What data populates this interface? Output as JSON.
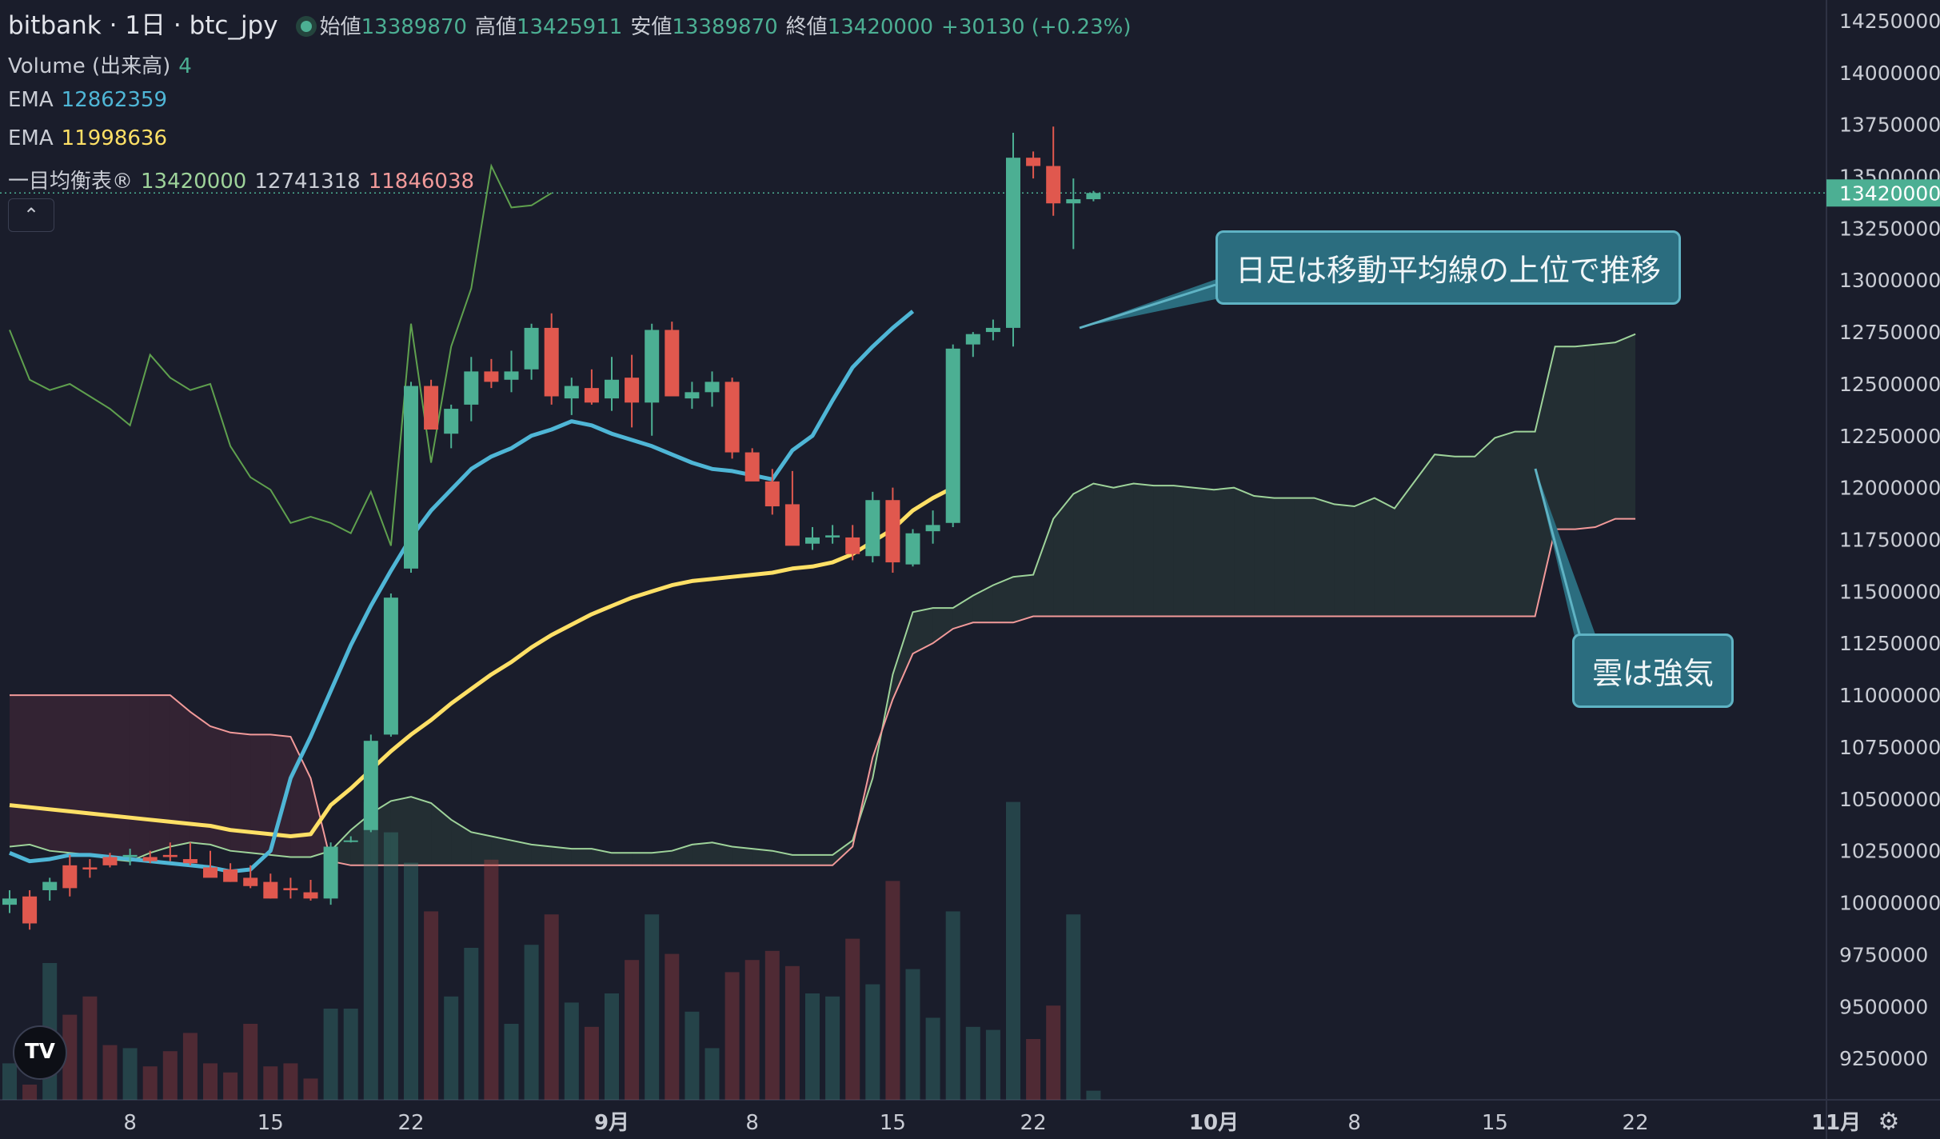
{
  "header": {
    "symbol_title": "bitbank · 1日 · btc_jpy",
    "open_label": "始値",
    "open_value": "13389870",
    "high_label": "高値",
    "high_value": "13425911",
    "low_label": "安値",
    "low_value": "13389870",
    "close_label": "終値",
    "close_value": "13420000",
    "change": "+30130 (+0.23%)"
  },
  "indicators": {
    "volume_label": "Volume (出来高)",
    "volume_value": "4",
    "ema1_label": "EMA",
    "ema1_value": "12862359",
    "ema2_label": "EMA",
    "ema2_value": "11998636",
    "ichimoku_label": "一目均衡表®",
    "ichimoku_v1": "13420000",
    "ichimoku_v2": "12741318",
    "ichimoku_v3": "11846038"
  },
  "annotations": {
    "callout_1": "日足は移動平均線の上位で推移",
    "callout_2": "雲は強気"
  },
  "ui": {
    "collapse_icon": "chevron-up-icon",
    "logo_text": "TV"
  },
  "colors": {
    "background": "#1a1d2b",
    "up": "#4caf93",
    "down": "#e0584e",
    "ema_fast": "#4fb6d6",
    "ema_slow": "#ffe066",
    "span_a": "#9ed39a",
    "span_b": "#f29a9a",
    "lagging": "#5fa04e"
  },
  "chart_data": {
    "type": "candlestick",
    "y_axis_ticks": [
      9250000,
      9500000,
      9750000,
      10000000,
      10250000,
      10500000,
      10750000,
      11000000,
      11250000,
      11500000,
      11750000,
      12000000,
      12250000,
      12500000,
      12750000,
      13000000,
      13250000,
      13500000,
      13750000,
      14000000,
      14250000
    ],
    "ylim": [
      9050000,
      14350000
    ],
    "last_price": 13420000,
    "x_axis_labels": [
      {
        "label": "",
        "slot": 0
      },
      {
        "label": "8",
        "slot": 6
      },
      {
        "label": "15",
        "slot": 13
      },
      {
        "label": "22",
        "slot": 20
      },
      {
        "label": "9月",
        "slot": 30
      },
      {
        "label": "8",
        "slot": 37
      },
      {
        "label": "15",
        "slot": 44
      },
      {
        "label": "22",
        "slot": 51
      },
      {
        "label": "10月",
        "slot": 60
      },
      {
        "label": "8",
        "slot": 67
      },
      {
        "label": "15",
        "slot": 74
      },
      {
        "label": "22",
        "slot": 81
      },
      {
        "label": "11月",
        "slot": 91
      }
    ],
    "candles": [
      [
        9990000,
        10060000,
        9950000,
        10020000
      ],
      [
        10030000,
        10060000,
        9870000,
        9900000
      ],
      [
        10060000,
        10120000,
        10010000,
        10100000
      ],
      [
        10180000,
        10230000,
        10030000,
        10070000
      ],
      [
        10170000,
        10210000,
        10120000,
        10160000
      ],
      [
        10220000,
        10240000,
        10170000,
        10180000
      ],
      [
        10220000,
        10260000,
        10180000,
        10230000
      ],
      [
        10220000,
        10250000,
        10190000,
        10200000
      ],
      [
        10230000,
        10290000,
        10200000,
        10220000
      ],
      [
        10210000,
        10290000,
        10180000,
        10190000
      ],
      [
        10170000,
        10250000,
        10130000,
        10120000
      ],
      [
        10160000,
        10190000,
        10100000,
        10100000
      ],
      [
        10120000,
        10180000,
        10070000,
        10080000
      ],
      [
        10100000,
        10140000,
        10020000,
        10020000
      ],
      [
        10070000,
        10120000,
        10020000,
        10060000
      ],
      [
        10050000,
        10110000,
        10010000,
        10020000
      ],
      [
        10020000,
        10290000,
        9990000,
        10270000
      ],
      [
        10300000,
        10320000,
        10290000,
        10300000
      ],
      [
        10350000,
        10810000,
        10340000,
        10780000
      ],
      [
        10810000,
        11490000,
        10800000,
        11470000
      ],
      [
        11610000,
        12510000,
        11590000,
        12490000
      ],
      [
        12490000,
        12520000,
        12280000,
        12280000
      ],
      [
        12260000,
        12400000,
        12190000,
        12380000
      ],
      [
        12400000,
        12630000,
        12320000,
        12560000
      ],
      [
        12560000,
        12620000,
        12480000,
        12510000
      ],
      [
        12520000,
        12660000,
        12460000,
        12560000
      ],
      [
        12570000,
        12790000,
        12520000,
        12770000
      ],
      [
        12770000,
        12840000,
        12400000,
        12440000
      ],
      [
        12430000,
        12530000,
        12350000,
        12490000
      ],
      [
        12480000,
        12570000,
        12400000,
        12410000
      ],
      [
        12430000,
        12630000,
        12370000,
        12520000
      ],
      [
        12530000,
        12640000,
        12290000,
        12410000
      ],
      [
        12410000,
        12790000,
        12250000,
        12760000
      ],
      [
        12760000,
        12800000,
        12460000,
        12440000
      ],
      [
        12430000,
        12510000,
        12380000,
        12460000
      ],
      [
        12460000,
        12560000,
        12390000,
        12510000
      ],
      [
        12510000,
        12530000,
        12140000,
        12170000
      ],
      [
        12170000,
        12190000,
        12040000,
        12030000
      ],
      [
        12030000,
        12090000,
        11870000,
        11910000
      ],
      [
        11920000,
        12080000,
        11740000,
        11720000
      ],
      [
        11730000,
        11810000,
        11700000,
        11760000
      ],
      [
        11760000,
        11820000,
        11730000,
        11770000
      ],
      [
        11760000,
        11820000,
        11650000,
        11680000
      ],
      [
        11670000,
        11980000,
        11640000,
        11940000
      ],
      [
        11940000,
        12000000,
        11590000,
        11640000
      ],
      [
        11630000,
        11800000,
        11620000,
        11780000
      ],
      [
        11790000,
        11890000,
        11730000,
        11820000
      ],
      [
        11830000,
        12690000,
        11810000,
        12670000
      ],
      [
        12690000,
        12750000,
        12630000,
        12740000
      ],
      [
        12750000,
        12810000,
        12710000,
        12770000
      ],
      [
        12770000,
        13710000,
        12680000,
        13590000
      ],
      [
        13590000,
        13620000,
        13490000,
        13550000
      ],
      [
        13550000,
        13740000,
        13310000,
        13370000
      ],
      [
        13370000,
        13490000,
        13150000,
        13390000
      ],
      [
        13390000,
        13430000,
        13380000,
        13420000
      ]
    ],
    "volume_rel": [
      0.12,
      0.05,
      0.45,
      0.28,
      0.34,
      0.18,
      0.17,
      0.11,
      0.16,
      0.22,
      0.12,
      0.09,
      0.25,
      0.11,
      0.12,
      0.07,
      0.3,
      0.3,
      0.98,
      0.88,
      0.78,
      0.62,
      0.34,
      0.5,
      0.79,
      0.25,
      0.51,
      0.61,
      0.32,
      0.24,
      0.35,
      0.46,
      0.61,
      0.48,
      0.29,
      0.17,
      0.42,
      0.46,
      0.49,
      0.44,
      0.35,
      0.34,
      0.53,
      0.38,
      0.72,
      0.43,
      0.27,
      0.62,
      0.24,
      0.23,
      0.98,
      0.2,
      0.31,
      0.61,
      0.03
    ],
    "volume_scale_max": 380,
    "ema_fast": [
      10240000,
      10200000,
      10210000,
      10230000,
      10230000,
      10220000,
      10210000,
      10200000,
      10190000,
      10180000,
      10170000,
      10150000,
      10160000,
      10250000,
      10600000,
      10800000,
      11020000,
      11240000,
      11430000,
      11600000,
      11760000,
      11890000,
      11990000,
      12090000,
      12150000,
      12190000,
      12250000,
      12280000,
      12320000,
      12300000,
      12260000,
      12230000,
      12200000,
      12160000,
      12120000,
      12090000,
      12080000,
      12060000,
      12040000,
      12180000,
      12250000,
      12420000,
      12580000,
      12680000,
      12770000,
      12850000
    ],
    "ema_fast_start_slot": 0,
    "ema_slow": [
      10470000,
      10460000,
      10450000,
      10440000,
      10430000,
      10420000,
      10410000,
      10400000,
      10390000,
      10380000,
      10370000,
      10350000,
      10340000,
      10330000,
      10320000,
      10330000,
      10470000,
      10550000,
      10640000,
      10730000,
      10810000,
      10880000,
      10960000,
      11030000,
      11100000,
      11160000,
      11230000,
      11290000,
      11340000,
      11390000,
      11430000,
      11470000,
      11500000,
      11530000,
      11550000,
      11560000,
      11570000,
      11580000,
      11590000,
      11610000,
      11620000,
      11640000,
      11680000,
      11740000,
      11800000,
      11890000,
      11950000,
      12000000
    ],
    "ema_slow_start_slot": 0,
    "span_a": [
      10270000,
      10280000,
      10250000,
      10240000,
      10230000,
      10210000,
      10200000,
      10240000,
      10270000,
      10290000,
      10280000,
      10250000,
      10240000,
      10230000,
      10220000,
      10220000,
      10250000,
      10350000,
      10430000,
      10490000,
      10510000,
      10480000,
      10400000,
      10340000,
      10320000,
      10300000,
      10280000,
      10270000,
      10260000,
      10260000,
      10240000,
      10240000,
      10240000,
      10250000,
      10280000,
      10290000,
      10270000,
      10260000,
      10250000,
      10230000,
      10230000,
      10230000,
      10300000,
      10600000,
      11100000,
      11400000,
      11420000,
      11420000,
      11480000,
      11530000,
      11570000,
      11580000,
      11850000,
      11970000,
      12020000,
      12000000,
      12020000,
      12010000,
      12010000,
      12000000,
      11990000,
      12000000,
      11960000,
      11950000,
      11950000,
      11950000,
      11920000,
      11910000,
      11950000,
      11900000,
      12030000,
      12160000,
      12150000,
      12150000,
      12240000,
      12270000,
      12270000,
      12680000,
      12680000,
      12690000,
      12700000,
      12740000
    ],
    "span_a_start_slot": 0,
    "span_b": [
      11000000,
      11000000,
      11000000,
      11000000,
      11000000,
      11000000,
      11000000,
      11000000,
      11000000,
      10920000,
      10850000,
      10820000,
      10810000,
      10810000,
      10800000,
      10600000,
      10200000,
      10180000,
      10180000,
      10180000,
      10180000,
      10180000,
      10180000,
      10180000,
      10180000,
      10180000,
      10180000,
      10180000,
      10180000,
      10180000,
      10180000,
      10180000,
      10180000,
      10180000,
      10180000,
      10180000,
      10180000,
      10180000,
      10180000,
      10180000,
      10180000,
      10180000,
      10270000,
      10700000,
      10980000,
      11200000,
      11250000,
      11320000,
      11350000,
      11350000,
      11350000,
      11380000,
      11380000,
      11380000,
      11380000,
      11380000,
      11380000,
      11380000,
      11380000,
      11380000,
      11380000,
      11380000,
      11380000,
      11380000,
      11380000,
      11380000,
      11380000,
      11380000,
      11380000,
      11380000,
      11380000,
      11380000,
      11380000,
      11380000,
      11380000,
      11380000,
      11380000,
      11800000,
      11800000,
      11810000,
      11850000,
      11850000
    ],
    "span_b_start_slot": 0,
    "lagging": [
      12760000,
      12520000,
      12470000,
      12500000,
      12440000,
      12380000,
      12300000,
      12640000,
      12530000,
      12470000,
      12500000,
      12200000,
      12050000,
      11990000,
      11830000,
      11860000,
      11830000,
      11780000,
      11980000,
      11720000,
      12790000,
      12120000,
      12680000,
      12960000,
      13550000,
      13350000,
      13360000,
      13420000
    ],
    "lagging_start_slot": 0
  }
}
